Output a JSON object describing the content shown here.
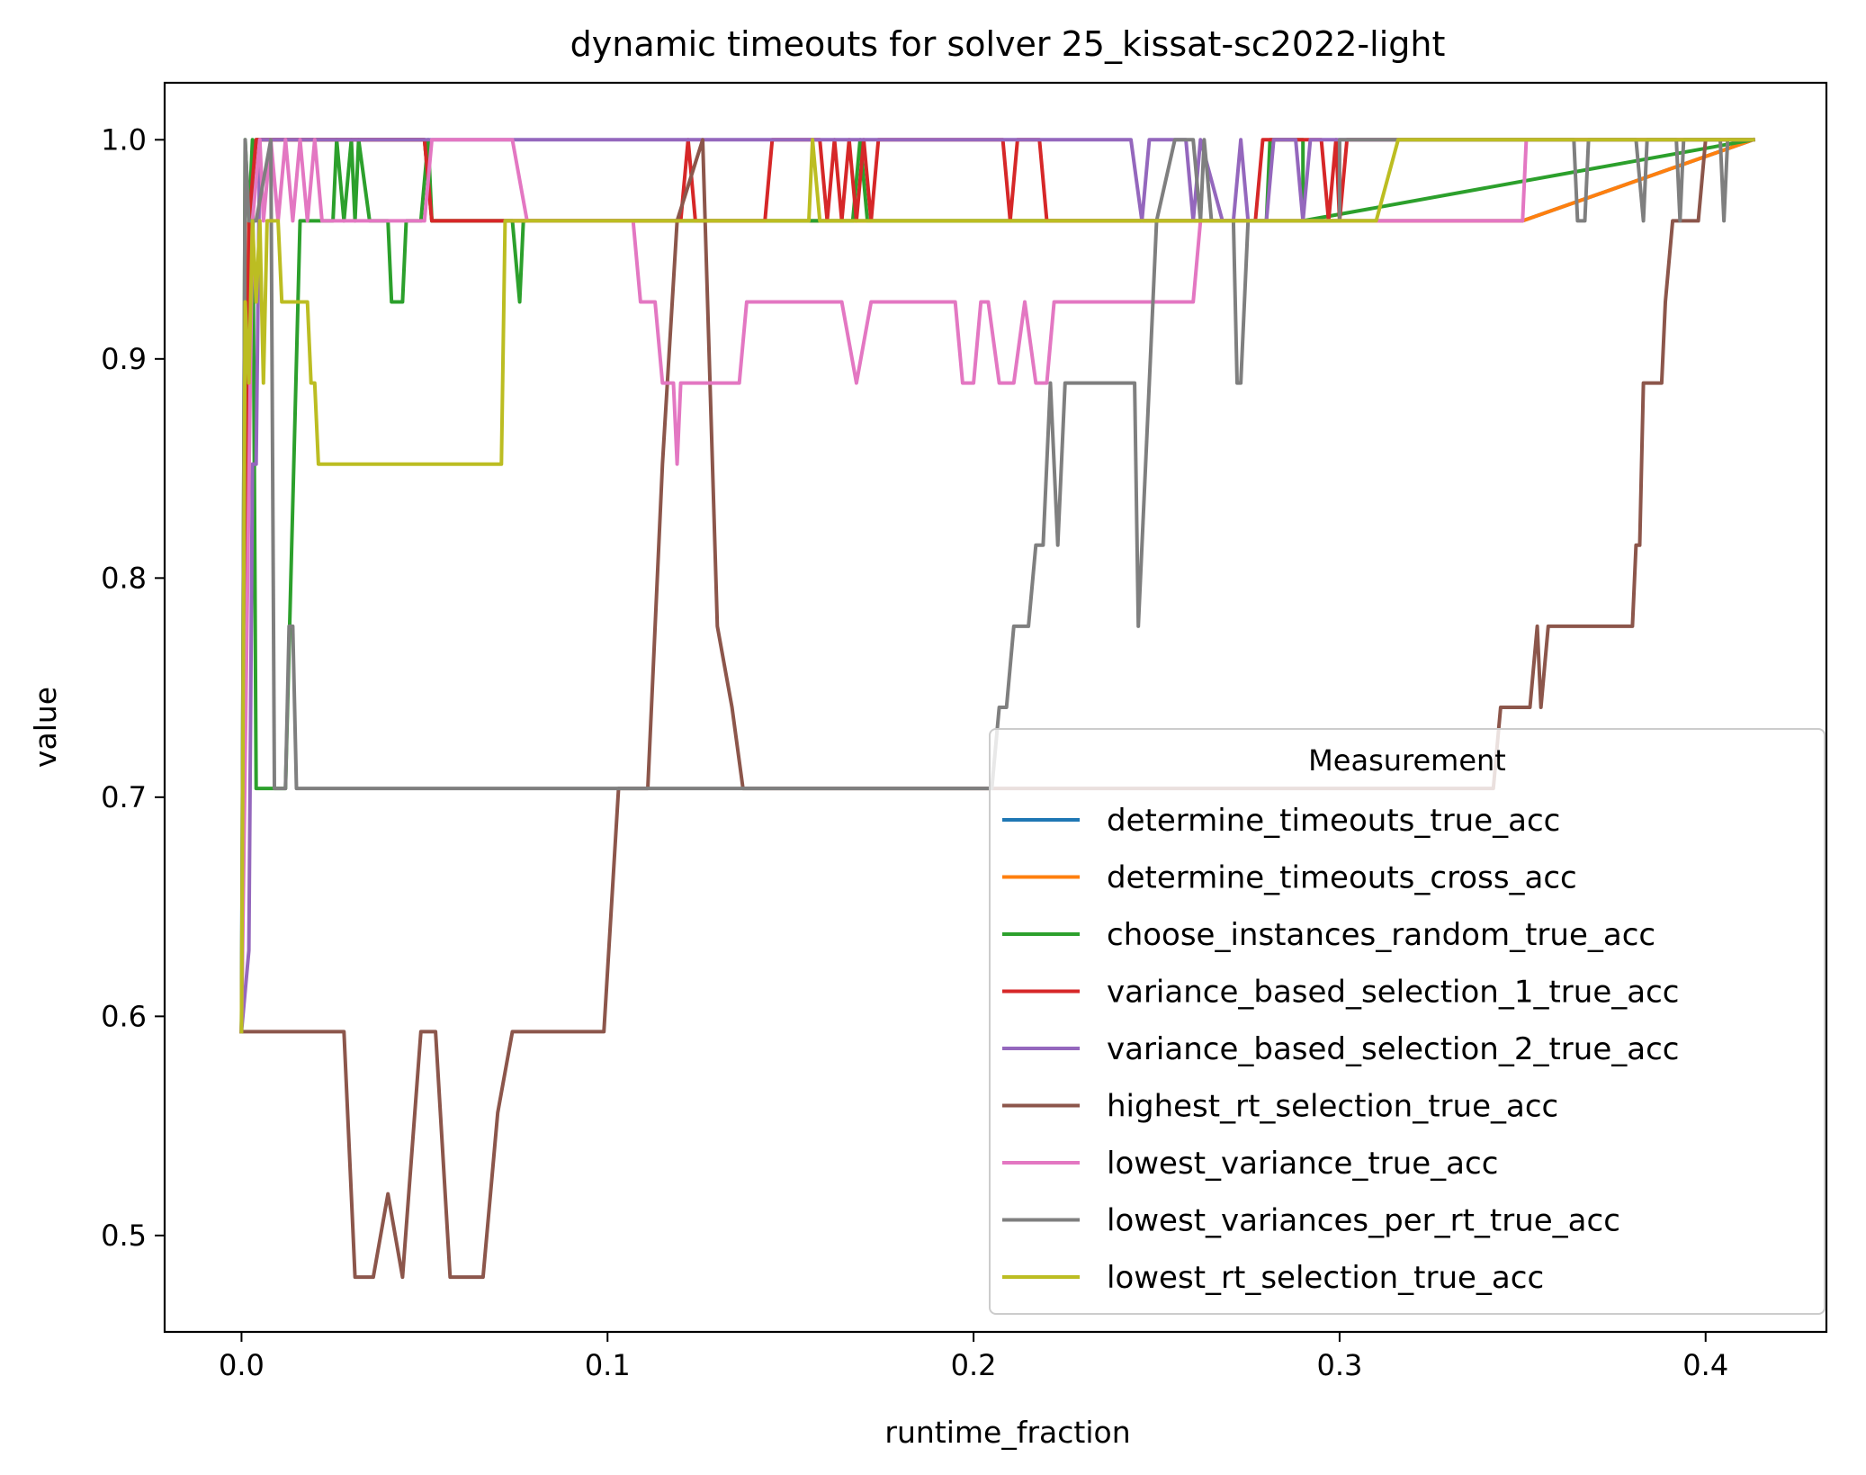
{
  "chart_data": {
    "type": "line",
    "title": "dynamic timeouts for solver 25_kissat-sc2022-light",
    "xlabel": "runtime_fraction",
    "ylabel": "value",
    "xlim": [
      -0.021,
      0.433
    ],
    "ylim": [
      0.456,
      1.026
    ],
    "xticks": [
      0.0,
      0.1,
      0.2,
      0.3,
      0.4
    ],
    "xtick_labels": [
      "0.0",
      "0.1",
      "0.2",
      "0.3",
      "0.4"
    ],
    "yticks": [
      0.5,
      0.6,
      0.7,
      0.8,
      0.9,
      1.0
    ],
    "ytick_labels": [
      "0.5",
      "0.6",
      "0.7",
      "0.8",
      "0.9",
      "1.0"
    ],
    "grid": false,
    "legend": {
      "title": "Measurement",
      "placement": "lower right"
    },
    "series": [
      {
        "name": "determine_timeouts_true_acc",
        "color": "#1f77b4",
        "points": [
          [
            0.0,
            0.593
          ],
          [
            0.002,
            0.963
          ],
          [
            0.004,
            1.0
          ],
          [
            0.05,
            1.0
          ],
          [
            0.052,
            0.963
          ],
          [
            0.155,
            0.963
          ],
          [
            0.157,
            0.963
          ],
          [
            0.35,
            0.963
          ],
          [
            0.413,
            1.0
          ]
        ]
      },
      {
        "name": "determine_timeouts_cross_acc",
        "color": "#ff7f0e",
        "points": [
          [
            0.0,
            0.593
          ],
          [
            0.002,
            0.963
          ],
          [
            0.004,
            1.0
          ],
          [
            0.05,
            1.0
          ],
          [
            0.052,
            0.963
          ],
          [
            0.155,
            0.963
          ],
          [
            0.157,
            0.963
          ],
          [
            0.35,
            0.963
          ],
          [
            0.413,
            1.0
          ]
        ]
      },
      {
        "name": "choose_instances_random_true_acc",
        "color": "#2ca02c",
        "points": [
          [
            0.0,
            0.593
          ],
          [
            0.001,
            1.0
          ],
          [
            0.002,
            0.963
          ],
          [
            0.003,
            1.0
          ],
          [
            0.004,
            0.704
          ],
          [
            0.012,
            0.704
          ],
          [
            0.016,
            0.963
          ],
          [
            0.025,
            0.963
          ],
          [
            0.026,
            1.0
          ],
          [
            0.028,
            0.963
          ],
          [
            0.03,
            1.0
          ],
          [
            0.031,
            0.963
          ],
          [
            0.032,
            1.0
          ],
          [
            0.035,
            0.963
          ],
          [
            0.04,
            0.963
          ],
          [
            0.041,
            0.926
          ],
          [
            0.044,
            0.926
          ],
          [
            0.045,
            0.963
          ],
          [
            0.049,
            0.963
          ],
          [
            0.051,
            1.0
          ],
          [
            0.052,
            0.963
          ],
          [
            0.07,
            0.963
          ],
          [
            0.074,
            0.963
          ],
          [
            0.076,
            0.926
          ],
          [
            0.077,
            0.963
          ],
          [
            0.16,
            0.963
          ],
          [
            0.167,
            0.963
          ],
          [
            0.169,
            1.0
          ],
          [
            0.171,
            0.963
          ],
          [
            0.28,
            0.963
          ],
          [
            0.281,
            1.0
          ],
          [
            0.29,
            1.0
          ],
          [
            0.29,
            0.963
          ],
          [
            0.413,
            1.0
          ]
        ]
      },
      {
        "name": "variance_based_selection_1_true_acc",
        "color": "#d62728",
        "points": [
          [
            0.0,
            0.593
          ],
          [
            0.002,
            0.963
          ],
          [
            0.004,
            1.0
          ],
          [
            0.05,
            1.0
          ],
          [
            0.052,
            0.963
          ],
          [
            0.12,
            0.963
          ],
          [
            0.122,
            1.0
          ],
          [
            0.124,
            0.963
          ],
          [
            0.143,
            0.963
          ],
          [
            0.145,
            1.0
          ],
          [
            0.158,
            1.0
          ],
          [
            0.16,
            0.963
          ],
          [
            0.162,
            1.0
          ],
          [
            0.164,
            0.963
          ],
          [
            0.166,
            1.0
          ],
          [
            0.168,
            0.963
          ],
          [
            0.17,
            1.0
          ],
          [
            0.172,
            0.963
          ],
          [
            0.174,
            1.0
          ],
          [
            0.208,
            1.0
          ],
          [
            0.21,
            0.963
          ],
          [
            0.212,
            1.0
          ],
          [
            0.218,
            1.0
          ],
          [
            0.22,
            0.963
          ],
          [
            0.277,
            0.963
          ],
          [
            0.279,
            1.0
          ],
          [
            0.295,
            1.0
          ],
          [
            0.297,
            0.963
          ],
          [
            0.299,
            1.0
          ],
          [
            0.3,
            0.963
          ],
          [
            0.302,
            1.0
          ],
          [
            0.413,
            1.0
          ]
        ]
      },
      {
        "name": "variance_based_selection_2_true_acc",
        "color": "#9467bd",
        "points": [
          [
            0.0,
            0.593
          ],
          [
            0.002,
            0.63
          ],
          [
            0.003,
            0.852
          ],
          [
            0.004,
            0.852
          ],
          [
            0.005,
            1.0
          ],
          [
            0.01,
            1.0
          ],
          [
            0.243,
            1.0
          ],
          [
            0.246,
            0.963
          ],
          [
            0.248,
            1.0
          ],
          [
            0.258,
            1.0
          ],
          [
            0.26,
            0.963
          ],
          [
            0.262,
            1.0
          ],
          [
            0.268,
            0.963
          ],
          [
            0.271,
            0.963
          ],
          [
            0.273,
            1.0
          ],
          [
            0.275,
            0.963
          ],
          [
            0.28,
            0.963
          ],
          [
            0.282,
            1.0
          ],
          [
            0.288,
            1.0
          ],
          [
            0.29,
            0.963
          ],
          [
            0.292,
            1.0
          ],
          [
            0.413,
            1.0
          ]
        ]
      },
      {
        "name": "highest_rt_selection_true_acc",
        "color": "#8c564b",
        "points": [
          [
            0.0,
            0.593
          ],
          [
            0.028,
            0.593
          ],
          [
            0.031,
            0.481
          ],
          [
            0.036,
            0.481
          ],
          [
            0.04,
            0.519
          ],
          [
            0.044,
            0.481
          ],
          [
            0.049,
            0.593
          ],
          [
            0.053,
            0.593
          ],
          [
            0.057,
            0.481
          ],
          [
            0.066,
            0.481
          ],
          [
            0.07,
            0.556
          ],
          [
            0.074,
            0.593
          ],
          [
            0.099,
            0.593
          ],
          [
            0.103,
            0.704
          ],
          [
            0.111,
            0.704
          ],
          [
            0.115,
            0.852
          ],
          [
            0.119,
            0.963
          ],
          [
            0.126,
            1.0
          ],
          [
            0.13,
            0.778
          ],
          [
            0.134,
            0.741
          ],
          [
            0.137,
            0.704
          ],
          [
            0.342,
            0.704
          ],
          [
            0.344,
            0.741
          ],
          [
            0.352,
            0.741
          ],
          [
            0.354,
            0.778
          ],
          [
            0.355,
            0.741
          ],
          [
            0.357,
            0.778
          ],
          [
            0.38,
            0.778
          ],
          [
            0.381,
            0.815
          ],
          [
            0.382,
            0.815
          ],
          [
            0.383,
            0.889
          ],
          [
            0.388,
            0.889
          ],
          [
            0.389,
            0.926
          ],
          [
            0.391,
            0.963
          ],
          [
            0.398,
            0.963
          ],
          [
            0.4,
            1.0
          ],
          [
            0.413,
            1.0
          ]
        ]
      },
      {
        "name": "lowest_variance_true_acc",
        "color": "#e377c2",
        "points": [
          [
            0.0,
            0.593
          ],
          [
            0.003,
            0.963
          ],
          [
            0.005,
            1.0
          ],
          [
            0.006,
            0.963
          ],
          [
            0.008,
            1.0
          ],
          [
            0.01,
            0.963
          ],
          [
            0.012,
            1.0
          ],
          [
            0.014,
            0.963
          ],
          [
            0.016,
            1.0
          ],
          [
            0.018,
            0.963
          ],
          [
            0.02,
            1.0
          ],
          [
            0.022,
            0.963
          ],
          [
            0.05,
            0.963
          ],
          [
            0.052,
            1.0
          ],
          [
            0.074,
            1.0
          ],
          [
            0.078,
            0.963
          ],
          [
            0.107,
            0.963
          ],
          [
            0.109,
            0.926
          ],
          [
            0.113,
            0.926
          ],
          [
            0.115,
            0.889
          ],
          [
            0.118,
            0.889
          ],
          [
            0.119,
            0.852
          ],
          [
            0.12,
            0.889
          ],
          [
            0.136,
            0.889
          ],
          [
            0.138,
            0.926
          ],
          [
            0.164,
            0.926
          ],
          [
            0.168,
            0.889
          ],
          [
            0.172,
            0.926
          ],
          [
            0.195,
            0.926
          ],
          [
            0.197,
            0.889
          ],
          [
            0.2,
            0.889
          ],
          [
            0.202,
            0.926
          ],
          [
            0.204,
            0.926
          ],
          [
            0.207,
            0.889
          ],
          [
            0.211,
            0.889
          ],
          [
            0.214,
            0.926
          ],
          [
            0.217,
            0.889
          ],
          [
            0.22,
            0.889
          ],
          [
            0.222,
            0.926
          ],
          [
            0.26,
            0.926
          ],
          [
            0.262,
            0.963
          ],
          [
            0.35,
            0.963
          ],
          [
            0.351,
            1.0
          ],
          [
            0.413,
            1.0
          ]
        ]
      },
      {
        "name": "lowest_variances_per_rt_true_acc",
        "color": "#7f7f7f",
        "points": [
          [
            0.0,
            0.593
          ],
          [
            0.001,
            1.0
          ],
          [
            0.002,
            0.963
          ],
          [
            0.004,
            0.963
          ],
          [
            0.008,
            1.0
          ],
          [
            0.009,
            0.704
          ],
          [
            0.012,
            0.704
          ],
          [
            0.013,
            0.778
          ],
          [
            0.014,
            0.778
          ],
          [
            0.015,
            0.704
          ],
          [
            0.205,
            0.704
          ],
          [
            0.207,
            0.741
          ],
          [
            0.209,
            0.741
          ],
          [
            0.211,
            0.778
          ],
          [
            0.215,
            0.778
          ],
          [
            0.217,
            0.815
          ],
          [
            0.219,
            0.815
          ],
          [
            0.221,
            0.889
          ],
          [
            0.223,
            0.815
          ],
          [
            0.225,
            0.889
          ],
          [
            0.244,
            0.889
          ],
          [
            0.245,
            0.778
          ],
          [
            0.248,
            0.889
          ],
          [
            0.25,
            0.963
          ],
          [
            0.255,
            1.0
          ],
          [
            0.26,
            1.0
          ],
          [
            0.262,
            0.963
          ],
          [
            0.263,
            1.0
          ],
          [
            0.265,
            0.963
          ],
          [
            0.271,
            0.963
          ],
          [
            0.272,
            0.889
          ],
          [
            0.273,
            0.889
          ],
          [
            0.275,
            0.963
          ],
          [
            0.3,
            0.963
          ],
          [
            0.3,
            1.0
          ],
          [
            0.364,
            1.0
          ],
          [
            0.365,
            0.963
          ],
          [
            0.367,
            0.963
          ],
          [
            0.368,
            1.0
          ],
          [
            0.381,
            1.0
          ],
          [
            0.383,
            0.963
          ],
          [
            0.384,
            1.0
          ],
          [
            0.392,
            1.0
          ],
          [
            0.393,
            0.963
          ],
          [
            0.394,
            1.0
          ],
          [
            0.404,
            1.0
          ],
          [
            0.405,
            0.963
          ],
          [
            0.406,
            1.0
          ],
          [
            0.413,
            1.0
          ]
        ]
      },
      {
        "name": "lowest_rt_selection_true_acc",
        "color": "#bcbd22",
        "points": [
          [
            0.0,
            0.593
          ],
          [
            0.001,
            0.926
          ],
          [
            0.002,
            0.889
          ],
          [
            0.003,
            0.963
          ],
          [
            0.004,
            0.926
          ],
          [
            0.005,
            0.963
          ],
          [
            0.006,
            0.889
          ],
          [
            0.007,
            0.963
          ],
          [
            0.01,
            0.963
          ],
          [
            0.011,
            0.926
          ],
          [
            0.018,
            0.926
          ],
          [
            0.019,
            0.889
          ],
          [
            0.02,
            0.889
          ],
          [
            0.021,
            0.852
          ],
          [
            0.071,
            0.852
          ],
          [
            0.072,
            0.963
          ],
          [
            0.155,
            0.963
          ],
          [
            0.156,
            1.0
          ],
          [
            0.158,
            0.963
          ],
          [
            0.31,
            0.963
          ],
          [
            0.316,
            1.0
          ],
          [
            0.413,
            1.0
          ]
        ]
      }
    ]
  }
}
